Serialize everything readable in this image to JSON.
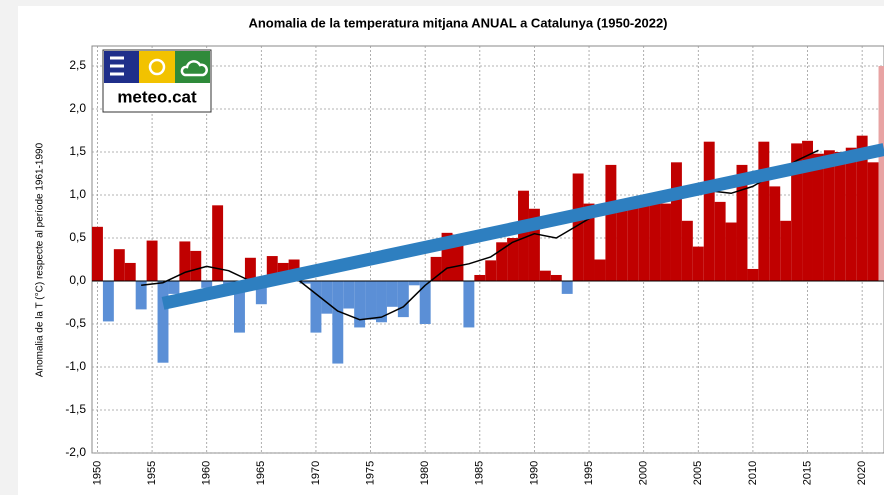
{
  "chart_data": {
    "type": "bar",
    "title": "Anomalia de la temperatura mitjana ANUAL a Catalunya (1950-2022)",
    "y_label": "Anomalia de la T (°C) respecte al període 1961-1990",
    "logo_text": "meteo.cat",
    "x": [
      1950,
      1951,
      1952,
      1953,
      1954,
      1955,
      1956,
      1957,
      1958,
      1959,
      1960,
      1961,
      1962,
      1963,
      1964,
      1965,
      1966,
      1967,
      1968,
      1969,
      1970,
      1971,
      1972,
      1973,
      1974,
      1975,
      1976,
      1977,
      1978,
      1979,
      1980,
      1981,
      1982,
      1983,
      1984,
      1985,
      1986,
      1987,
      1988,
      1989,
      1990,
      1991,
      1992,
      1993,
      1994,
      1995,
      1996,
      1997,
      1998,
      1999,
      2000,
      2001,
      2002,
      2003,
      2004,
      2005,
      2006,
      2007,
      2008,
      2009,
      2010,
      2011,
      2012,
      2013,
      2014,
      2015,
      2016,
      2017,
      2018,
      2019,
      2020,
      2021,
      2022
    ],
    "values": [
      0.63,
      -0.47,
      0.37,
      0.21,
      -0.33,
      0.47,
      -0.95,
      -0.15,
      0.46,
      0.35,
      -0.08,
      0.88,
      -0.05,
      -0.6,
      0.27,
      -0.27,
      0.29,
      0.21,
      0.25,
      -0.03,
      -0.6,
      -0.38,
      -0.96,
      -0.32,
      -0.54,
      -0.45,
      -0.48,
      -0.3,
      -0.42,
      -0.05,
      -0.5,
      0.28,
      0.56,
      0.54,
      -0.54,
      0.07,
      0.24,
      0.45,
      0.5,
      1.05,
      0.84,
      0.12,
      0.07,
      -0.15,
      1.25,
      0.9,
      0.25,
      1.35,
      0.85,
      0.9,
      0.95,
      1.0,
      0.9,
      1.38,
      0.7,
      0.4,
      1.62,
      0.92,
      0.68,
      1.35,
      0.14,
      1.62,
      1.1,
      0.7,
      1.6,
      1.63,
      1.48,
      1.52,
      1.5,
      1.55,
      1.69,
      1.38,
      2.5
    ],
    "colors": {
      "positive": "#c00000",
      "negative": "#5b8fd6",
      "last": "#e8a3a3"
    },
    "smooth": {
      "color": "#000000",
      "x": [
        1954,
        1956,
        1958,
        1960,
        1962,
        1964,
        1966,
        1968,
        1970,
        1972,
        1974,
        1976,
        1978,
        1980,
        1982,
        1984,
        1986,
        1988,
        1990,
        1992,
        1994,
        1996,
        1998,
        2000,
        2002,
        2004,
        2006,
        2008,
        2010,
        2012,
        2014,
        2016
      ],
      "values": [
        -0.05,
        -0.02,
        0.1,
        0.17,
        0.12,
        0.0,
        0.03,
        0.05,
        -0.15,
        -0.35,
        -0.45,
        -0.42,
        -0.3,
        -0.05,
        0.15,
        0.2,
        0.28,
        0.45,
        0.55,
        0.5,
        0.65,
        0.8,
        0.9,
        0.97,
        1.0,
        1.05,
        1.05,
        1.02,
        1.1,
        1.25,
        1.4,
        1.52
      ]
    },
    "trend": {
      "color": "#2e7fc0",
      "x": [
        1956,
        2022
      ],
      "values": [
        -0.26,
        1.53
      ]
    },
    "xlim": [
      1949.5,
      2022
    ],
    "ylim": [
      -2,
      2.5
    ],
    "xticks": [
      1950,
      1955,
      1960,
      1965,
      1970,
      1975,
      1980,
      1985,
      1990,
      1995,
      2000,
      2005,
      2010,
      2015,
      2020
    ],
    "yticks": [
      {
        "value": -2,
        "label": "-2,0"
      },
      {
        "value": -1.5,
        "label": "-1,5"
      },
      {
        "value": -1,
        "label": "-1,0"
      },
      {
        "value": -0.5,
        "label": "-0,5"
      },
      {
        "value": 0,
        "label": "0,0"
      },
      {
        "value": 0.5,
        "label": "0,5"
      },
      {
        "value": 1,
        "label": "1,0"
      },
      {
        "value": 1.5,
        "label": "1,5"
      },
      {
        "value": 2,
        "label": "2,0"
      },
      {
        "value": 2.5,
        "label": "2,5"
      }
    ],
    "grid": true
  }
}
